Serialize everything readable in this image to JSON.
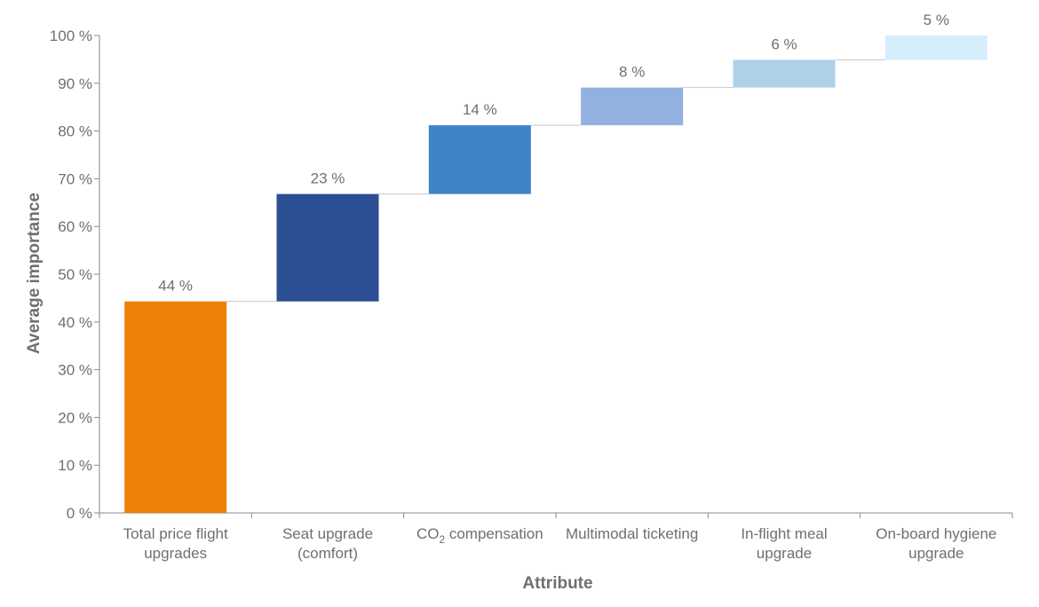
{
  "chart_data": {
    "type": "bar",
    "subtype": "waterfall",
    "xlabel": "Attribute",
    "ylabel": "Average importance",
    "ylim": [
      0,
      100
    ],
    "yticks": [
      0,
      10,
      20,
      30,
      40,
      50,
      60,
      70,
      80,
      90,
      100
    ],
    "ytick_labels": [
      "0 %",
      "10 %",
      "20 %",
      "30 %",
      "40 %",
      "50 %",
      "60 %",
      "70 %",
      "80 %",
      "90 %",
      "100 %"
    ],
    "categories": [
      "Total price flight upgrades",
      "Seat upgrade (comfort)",
      "CO2 compensation",
      "Multimodal ticketing",
      "In-flight meal upgrade",
      "On-board hygiene upgrade"
    ],
    "category_label_lines": [
      [
        "Total price flight",
        "upgrades"
      ],
      [
        "Seat upgrade",
        "(comfort)"
      ],
      [
        "CO2 compensation"
      ],
      [
        "Multimodal ticketing"
      ],
      [
        "In-flight meal",
        "upgrade"
      ],
      [
        "On-board hygiene",
        "upgrade"
      ]
    ],
    "values": [
      44.3,
      22.5,
      14.4,
      7.9,
      5.8,
      5.1
    ],
    "data_labels": [
      "44 %",
      "23 %",
      "14 %",
      "8 %",
      "6 %",
      "5 %"
    ],
    "colors": [
      "#ED8007",
      "#2C4F94",
      "#3D84C6",
      "#92B1DF",
      "#AED1E8",
      "#D6EEFB"
    ],
    "grid": false,
    "legend": "none"
  }
}
